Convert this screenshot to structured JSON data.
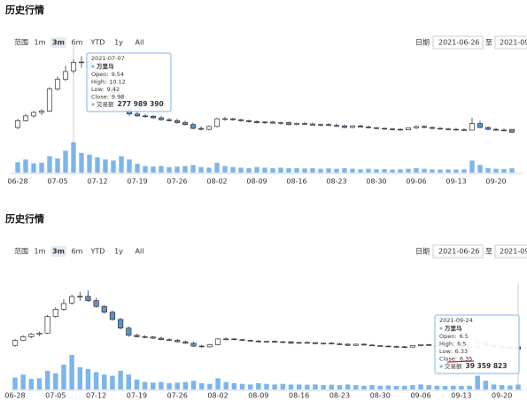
{
  "panels": [
    {
      "title": "历史行情",
      "range_label": "范围",
      "buttons": [
        "1m",
        "3m",
        "6m",
        "YTD",
        "1y",
        "All"
      ],
      "selected": "3m",
      "date_label": "日期",
      "from": "2021-06-26",
      "to_label": "至",
      "to": "2021-09"
    },
    {
      "title": "历史行情",
      "range_label": "范围",
      "buttons": [
        "1m",
        "3m",
        "6m",
        "YTD",
        "1y",
        "All"
      ],
      "selected": "3m",
      "date_label": "日期",
      "from": "2021-06-26",
      "to_label": "至",
      "to": "2021-09-"
    }
  ],
  "chart_data": [
    {
      "type": "candlestick",
      "x": [
        "2021-06-28",
        "2021-06-29",
        "2021-06-30",
        "2021-07-01",
        "2021-07-02",
        "2021-07-05",
        "2021-07-06",
        "2021-07-07",
        "2021-07-08",
        "2021-07-09",
        "2021-07-12",
        "2021-07-13",
        "2021-07-14",
        "2021-07-15",
        "2021-07-16",
        "2021-07-19",
        "2021-07-20",
        "2021-07-21",
        "2021-07-22",
        "2021-07-23",
        "2021-07-26",
        "2021-07-27",
        "2021-07-28",
        "2021-07-29",
        "2021-07-30",
        "2021-08-02",
        "2021-08-03",
        "2021-08-04",
        "2021-08-05",
        "2021-08-06",
        "2021-08-09",
        "2021-08-10",
        "2021-08-11",
        "2021-08-12",
        "2021-08-13",
        "2021-08-16",
        "2021-08-17",
        "2021-08-18",
        "2021-08-19",
        "2021-08-20",
        "2021-08-23",
        "2021-08-24",
        "2021-08-25",
        "2021-08-26",
        "2021-08-27",
        "2021-08-30",
        "2021-08-31",
        "2021-09-01",
        "2021-09-02",
        "2021-09-03",
        "2021-09-06",
        "2021-09-07",
        "2021-09-08",
        "2021-09-09",
        "2021-09-10",
        "2021-09-13",
        "2021-09-14",
        "2021-09-15",
        "2021-09-16",
        "2021-09-17",
        "2021-09-22",
        "2021-09-23",
        "2021-09-24"
      ],
      "open": [
        6.6,
        6.95,
        7.2,
        7.38,
        7.45,
        8.6,
        9.1,
        9.54,
        9.98,
        10.0,
        9.7,
        9.3,
        8.9,
        8.4,
        7.8,
        7.3,
        7.2,
        7.18,
        7.1,
        7.0,
        6.95,
        6.85,
        6.75,
        6.55,
        6.5,
        6.65,
        7.05,
        7.05,
        7.0,
        6.95,
        6.9,
        6.85,
        6.88,
        6.82,
        6.85,
        6.75,
        6.8,
        6.78,
        6.72,
        6.75,
        6.7,
        6.68,
        6.6,
        6.68,
        6.62,
        6.58,
        6.55,
        6.52,
        6.5,
        6.48,
        6.58,
        6.65,
        6.6,
        6.55,
        6.52,
        6.5,
        6.48,
        6.46,
        6.8,
        6.6,
        6.5,
        6.46,
        6.5
      ],
      "high": [
        7.05,
        7.3,
        7.45,
        7.55,
        8.7,
        9.25,
        9.8,
        10.12,
        10.3,
        10.4,
        9.9,
        9.4,
        9.0,
        8.5,
        7.9,
        7.4,
        7.3,
        7.25,
        7.2,
        7.1,
        7.05,
        6.95,
        6.85,
        6.65,
        6.7,
        7.1,
        7.15,
        7.1,
        7.05,
        7.0,
        6.98,
        6.92,
        6.95,
        6.9,
        6.9,
        6.85,
        6.88,
        6.85,
        6.8,
        6.82,
        6.8,
        6.75,
        6.72,
        6.75,
        6.7,
        6.62,
        6.6,
        6.58,
        6.56,
        6.6,
        6.7,
        6.7,
        6.65,
        6.62,
        6.58,
        6.58,
        6.55,
        7.1,
        6.95,
        6.65,
        6.58,
        6.55,
        6.5
      ],
      "low": [
        6.5,
        6.9,
        7.1,
        7.25,
        7.4,
        8.5,
        9.0,
        9.42,
        9.7,
        9.6,
        9.2,
        8.8,
        8.3,
        7.7,
        7.2,
        7.15,
        7.1,
        7.05,
        6.95,
        6.9,
        6.8,
        6.7,
        6.5,
        6.45,
        6.45,
        6.6,
        6.95,
        6.95,
        6.9,
        6.85,
        6.8,
        6.78,
        6.8,
        6.75,
        6.7,
        6.7,
        6.72,
        6.7,
        6.65,
        6.68,
        6.62,
        6.55,
        6.55,
        6.6,
        6.55,
        6.5,
        6.48,
        6.45,
        6.44,
        6.45,
        6.52,
        6.55,
        6.5,
        6.48,
        6.45,
        6.44,
        6.42,
        6.45,
        6.55,
        6.45,
        6.42,
        6.4,
        6.33
      ],
      "close": [
        6.95,
        7.2,
        7.38,
        7.45,
        8.6,
        9.1,
        9.5,
        9.98,
        10.0,
        9.7,
        9.3,
        8.9,
        8.4,
        7.8,
        7.3,
        7.2,
        7.18,
        7.1,
        7.0,
        6.95,
        6.85,
        6.75,
        6.55,
        6.5,
        6.65,
        7.05,
        7.05,
        7.0,
        6.95,
        6.9,
        6.85,
        6.88,
        6.82,
        6.85,
        6.75,
        6.8,
        6.78,
        6.72,
        6.75,
        6.7,
        6.68,
        6.6,
        6.68,
        6.62,
        6.58,
        6.55,
        6.52,
        6.5,
        6.48,
        6.58,
        6.65,
        6.6,
        6.55,
        6.52,
        6.5,
        6.48,
        6.46,
        6.8,
        6.6,
        6.5,
        6.46,
        6.45,
        6.35
      ],
      "volume": [
        95000000,
        120000000,
        85000000,
        90000000,
        150000000,
        130000000,
        200000000,
        277989390,
        180000000,
        165000000,
        140000000,
        120000000,
        110000000,
        150000000,
        120000000,
        80000000,
        60000000,
        55000000,
        60000000,
        50000000,
        55000000,
        60000000,
        70000000,
        50000000,
        45000000,
        90000000,
        60000000,
        50000000,
        45000000,
        40000000,
        50000000,
        45000000,
        40000000,
        45000000,
        40000000,
        40000000,
        38000000,
        40000000,
        35000000,
        38000000,
        35000000,
        40000000,
        35000000,
        30000000,
        35000000,
        30000000,
        32000000,
        28000000,
        30000000,
        35000000,
        40000000,
        35000000,
        30000000,
        28000000,
        30000000,
        28000000,
        30000000,
        110000000,
        70000000,
        40000000,
        35000000,
        32000000,
        39359823
      ],
      "ylim": [
        6.0,
        10.6
      ],
      "vlim": [
        0,
        300000000
      ],
      "xticks": [
        {
          "value": "2021-06-28",
          "label": "06-28"
        },
        {
          "value": "2021-07-05",
          "label": "07-05"
        },
        {
          "value": "2021-07-12",
          "label": "07-12"
        },
        {
          "value": "2021-07-19",
          "label": "07-19"
        },
        {
          "value": "2021-07-26",
          "label": "07-26"
        },
        {
          "value": "2021-08-02",
          "label": "08-02"
        },
        {
          "value": "2021-08-09",
          "label": "08-09"
        },
        {
          "value": "2021-08-16",
          "label": "08-16"
        },
        {
          "value": "2021-08-23",
          "label": "08-23"
        },
        {
          "value": "2021-08-30",
          "label": "08-30"
        },
        {
          "value": "2021-09-06",
          "label": "09-06"
        },
        {
          "value": "2021-09-13",
          "label": "09-13"
        },
        {
          "value": "2021-09-20",
          "label": "09-20"
        }
      ],
      "up_color": "#ffffff",
      "down_color": "#5b93cf",
      "line_color": "#333333",
      "volume_color": "#7cb5ec",
      "tooltip": {
        "date": "2021-07-07",
        "series_name": "万里马",
        "labels": [
          "Open:",
          "High:",
          "Low:",
          "Close:"
        ],
        "volume_name": "交易额",
        "volume_label": "277 989 390"
      }
    },
    {
      "type": "candlestick",
      "x": [
        "2021-06-28",
        "2021-06-29",
        "2021-06-30",
        "2021-07-01",
        "2021-07-02",
        "2021-07-05",
        "2021-07-06",
        "2021-07-07",
        "2021-07-08",
        "2021-07-09",
        "2021-07-12",
        "2021-07-13",
        "2021-07-14",
        "2021-07-15",
        "2021-07-16",
        "2021-07-19",
        "2021-07-20",
        "2021-07-21",
        "2021-07-22",
        "2021-07-23",
        "2021-07-26",
        "2021-07-27",
        "2021-07-28",
        "2021-07-29",
        "2021-07-30",
        "2021-08-02",
        "2021-08-03",
        "2021-08-04",
        "2021-08-05",
        "2021-08-06",
        "2021-08-09",
        "2021-08-10",
        "2021-08-11",
        "2021-08-12",
        "2021-08-13",
        "2021-08-16",
        "2021-08-17",
        "2021-08-18",
        "2021-08-19",
        "2021-08-20",
        "2021-08-23",
        "2021-08-24",
        "2021-08-25",
        "2021-08-26",
        "2021-08-27",
        "2021-08-30",
        "2021-08-31",
        "2021-09-01",
        "2021-09-02",
        "2021-09-03",
        "2021-09-06",
        "2021-09-07",
        "2021-09-08",
        "2021-09-09",
        "2021-09-10",
        "2021-09-13",
        "2021-09-14",
        "2021-09-15",
        "2021-09-16",
        "2021-09-17",
        "2021-09-22",
        "2021-09-23",
        "2021-09-24"
      ],
      "open": [
        6.6,
        6.95,
        7.2,
        7.38,
        7.45,
        8.6,
        9.1,
        9.54,
        9.98,
        10.0,
        9.7,
        9.3,
        8.9,
        8.4,
        7.8,
        7.3,
        7.2,
        7.18,
        7.1,
        7.0,
        6.95,
        6.85,
        6.75,
        6.55,
        6.5,
        6.65,
        7.05,
        7.05,
        7.0,
        6.95,
        6.9,
        6.85,
        6.88,
        6.82,
        6.85,
        6.75,
        6.8,
        6.78,
        6.72,
        6.75,
        6.7,
        6.68,
        6.6,
        6.68,
        6.62,
        6.58,
        6.55,
        6.52,
        6.5,
        6.48,
        6.58,
        6.65,
        6.6,
        6.55,
        6.52,
        6.5,
        6.48,
        6.46,
        6.8,
        6.6,
        6.5,
        6.46,
        6.5
      ],
      "high": [
        7.05,
        7.3,
        7.45,
        7.55,
        8.7,
        9.25,
        9.8,
        10.12,
        10.3,
        10.4,
        9.9,
        9.4,
        9.0,
        8.5,
        7.9,
        7.4,
        7.3,
        7.25,
        7.2,
        7.1,
        7.05,
        6.95,
        6.85,
        6.65,
        6.7,
        7.1,
        7.15,
        7.1,
        7.05,
        7.0,
        6.98,
        6.92,
        6.95,
        6.9,
        6.9,
        6.85,
        6.88,
        6.85,
        6.8,
        6.82,
        6.8,
        6.75,
        6.72,
        6.75,
        6.7,
        6.62,
        6.6,
        6.58,
        6.56,
        6.6,
        6.7,
        6.7,
        6.65,
        6.62,
        6.58,
        6.58,
        6.55,
        7.1,
        6.95,
        6.65,
        6.58,
        6.55,
        6.5
      ],
      "low": [
        6.5,
        6.9,
        7.1,
        7.25,
        7.4,
        8.5,
        9.0,
        9.42,
        9.7,
        9.6,
        9.2,
        8.8,
        8.3,
        7.7,
        7.2,
        7.15,
        7.1,
        7.05,
        6.95,
        6.9,
        6.8,
        6.7,
        6.5,
        6.45,
        6.45,
        6.6,
        6.95,
        6.95,
        6.9,
        6.85,
        6.8,
        6.78,
        6.8,
        6.75,
        6.7,
        6.7,
        6.72,
        6.7,
        6.65,
        6.68,
        6.62,
        6.55,
        6.55,
        6.6,
        6.55,
        6.5,
        6.48,
        6.45,
        6.44,
        6.45,
        6.52,
        6.55,
        6.5,
        6.48,
        6.45,
        6.44,
        6.42,
        6.45,
        6.55,
        6.45,
        6.42,
        6.4,
        6.33
      ],
      "close": [
        6.95,
        7.2,
        7.38,
        7.45,
        8.6,
        9.1,
        9.5,
        9.98,
        10.0,
        9.7,
        9.3,
        8.9,
        8.4,
        7.8,
        7.3,
        7.2,
        7.18,
        7.1,
        7.0,
        6.95,
        6.85,
        6.75,
        6.55,
        6.5,
        6.65,
        7.05,
        7.05,
        7.0,
        6.95,
        6.9,
        6.85,
        6.88,
        6.82,
        6.85,
        6.75,
        6.8,
        6.78,
        6.72,
        6.75,
        6.7,
        6.68,
        6.6,
        6.68,
        6.62,
        6.58,
        6.55,
        6.52,
        6.5,
        6.48,
        6.58,
        6.65,
        6.6,
        6.55,
        6.52,
        6.5,
        6.48,
        6.46,
        6.8,
        6.6,
        6.5,
        6.46,
        6.45,
        6.35
      ],
      "volume": [
        95000000,
        120000000,
        85000000,
        90000000,
        150000000,
        130000000,
        200000000,
        277989390,
        180000000,
        165000000,
        140000000,
        120000000,
        110000000,
        150000000,
        120000000,
        80000000,
        60000000,
        55000000,
        60000000,
        50000000,
        55000000,
        60000000,
        70000000,
        50000000,
        45000000,
        90000000,
        60000000,
        50000000,
        45000000,
        40000000,
        50000000,
        45000000,
        40000000,
        45000000,
        40000000,
        40000000,
        38000000,
        40000000,
        35000000,
        38000000,
        35000000,
        40000000,
        35000000,
        30000000,
        35000000,
        30000000,
        32000000,
        28000000,
        30000000,
        35000000,
        40000000,
        35000000,
        30000000,
        28000000,
        30000000,
        28000000,
        30000000,
        110000000,
        70000000,
        40000000,
        35000000,
        32000000,
        39359823
      ],
      "ylim": [
        6.0,
        10.6
      ],
      "vlim": [
        0,
        300000000
      ],
      "xticks": [
        {
          "value": "2021-06-28",
          "label": "06-28"
        },
        {
          "value": "2021-07-05",
          "label": "07-05"
        },
        {
          "value": "2021-07-12",
          "label": "07-12"
        },
        {
          "value": "2021-07-19",
          "label": "07-19"
        },
        {
          "value": "2021-07-26",
          "label": "07-26"
        },
        {
          "value": "2021-08-02",
          "label": "08-02"
        },
        {
          "value": "2021-08-09",
          "label": "08-09"
        },
        {
          "value": "2021-08-16",
          "label": "08-16"
        },
        {
          "value": "2021-08-23",
          "label": "08-23"
        },
        {
          "value": "2021-08-30",
          "label": "08-30"
        },
        {
          "value": "2021-09-06",
          "label": "09-06"
        },
        {
          "value": "2021-09-13",
          "label": "09-13"
        },
        {
          "value": "2021-09-20",
          "label": "09-20"
        }
      ],
      "up_color": "#ffffff",
      "down_color": "#5b93cf",
      "line_color": "#333333",
      "volume_color": "#7cb5ec",
      "tooltip": {
        "date": "2021-09-24",
        "series_name": "万里马",
        "labels": [
          "Open:",
          "High:",
          "Low:",
          "Close:"
        ],
        "volume_name": "交易额",
        "volume_label": "39 359 823"
      }
    }
  ]
}
